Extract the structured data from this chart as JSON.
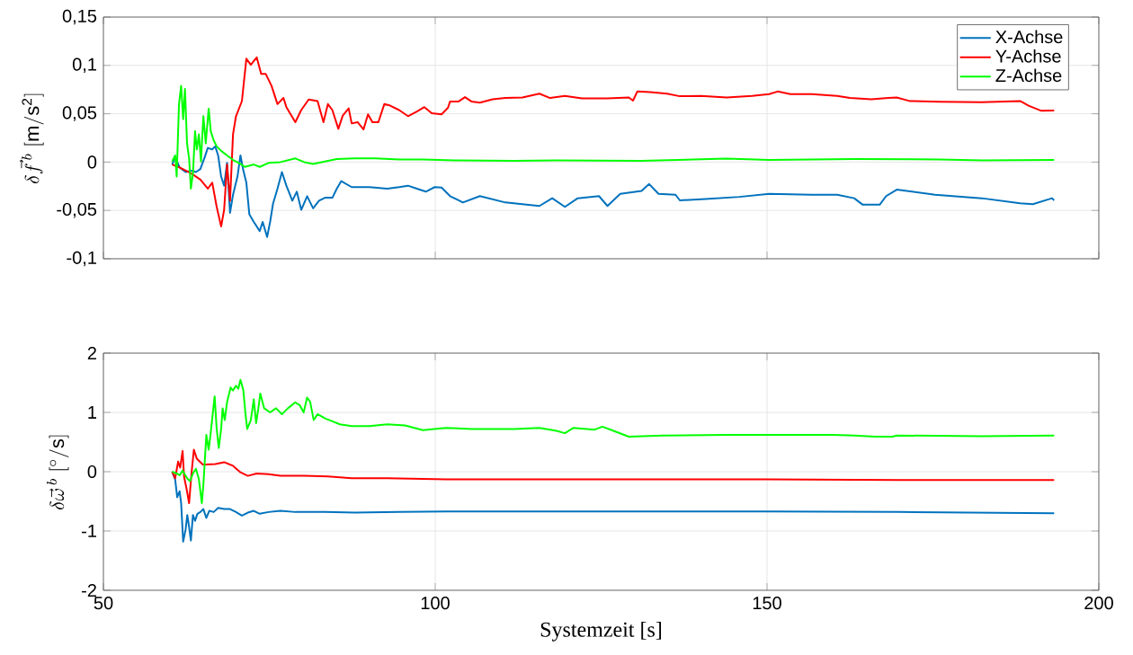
{
  "chart_data": [
    {
      "type": "line",
      "ylabel": "\\delta \\vec{f}^{\\,b}\\ [\\mathrm{m/s^2}]",
      "xlim": [
        50,
        200
      ],
      "xticks": [
        50,
        100,
        150,
        200
      ],
      "ylim": [
        -0.1,
        0.15
      ],
      "yticks": [
        {
          "value": -0.1,
          "label": "-0,1"
        },
        {
          "value": -0.05,
          "label": "-0,05"
        },
        {
          "value": 0,
          "label": "0"
        },
        {
          "value": 0.05,
          "label": "0,05"
        },
        {
          "value": 0.1,
          "label": "0,1"
        },
        {
          "value": 0.15,
          "label": "0,15"
        }
      ],
      "tick_labels": "y",
      "grid": true,
      "legend": "top right",
      "series": [
        {
          "name": "X-Achse",
          "color": "#0072bd",
          "x": [
            60.36,
            60.81,
            61.48,
            62.38,
            63.27,
            63.94,
            64.61,
            65.28,
            65.73,
            66.4,
            66.85,
            67.29,
            67.74,
            68.19,
            68.63,
            69.08,
            69.53,
            70.2,
            70.65,
            71.09,
            71.54,
            71.99,
            72.66,
            73.55,
            74.0,
            74.67,
            75.12,
            75.56,
            76.23,
            76.9,
            77.57,
            78.47,
            79.14,
            79.81,
            80.7,
            81.6,
            82.49,
            83.39,
            84.5,
            85.17,
            85.84,
            87.41,
            90.09,
            92.77,
            94.56,
            95.9,
            97.24,
            98.58,
            99.92,
            100.96,
            102.24,
            104.17,
            106.73,
            110.58,
            115.7,
            117.63,
            119.55,
            121.47,
            124.68,
            125.96,
            127.88,
            131.09,
            132.24,
            133.65,
            136.22,
            136.86,
            140.7,
            145.83,
            150.32,
            156.73,
            160.57,
            163.14,
            164.42,
            166.98,
            167.95,
            169.55,
            175.32,
            182.37,
            188.14,
            190.06,
            192.95,
            193.27
          ],
          "values": [
            -0.0025,
            0.0053,
            -0.0056,
            -0.0103,
            -0.0088,
            -0.0103,
            -0.0072,
            0.0053,
            0.0147,
            0.0131,
            0.0163,
            0.0069,
            -0.015,
            -0.0244,
            -0.0009,
            -0.0525,
            -0.0338,
            -0.015,
            0.0069,
            -0.0088,
            -0.0213,
            -0.0541,
            -0.0619,
            -0.0713,
            -0.0619,
            -0.0775,
            -0.0619,
            -0.0431,
            -0.0275,
            -0.0103,
            -0.0244,
            -0.04,
            -0.0306,
            -0.0494,
            -0.0353,
            -0.0478,
            -0.04,
            -0.0369,
            -0.0369,
            -0.0275,
            -0.0197,
            -0.0259,
            -0.0259,
            -0.0275,
            -0.0259,
            -0.0244,
            -0.0275,
            -0.0306,
            -0.0259,
            -0.0263,
            -0.0352,
            -0.0418,
            -0.0352,
            -0.0418,
            -0.0454,
            -0.0374,
            -0.0463,
            -0.0374,
            -0.0352,
            -0.0454,
            -0.0329,
            -0.0298,
            -0.0227,
            -0.0329,
            -0.0338,
            -0.0396,
            -0.0383,
            -0.036,
            -0.0329,
            -0.0338,
            -0.0338,
            -0.0374,
            -0.0441,
            -0.0441,
            -0.0352,
            -0.0285,
            -0.0338,
            -0.0374,
            -0.0427,
            -0.0436,
            -0.0374,
            -0.0396
          ]
        },
        {
          "name": "Y-Achse",
          "color": "#ff0000",
          "x": [
            60.36,
            61.48,
            63.27,
            64.61,
            65.73,
            66.4,
            67.07,
            67.74,
            68.19,
            68.63,
            69.08,
            69.53,
            69.98,
            70.87,
            71.54,
            72.21,
            73.1,
            73.77,
            74.45,
            75.34,
            76.23,
            77.13,
            77.57,
            78.92,
            79.81,
            80.93,
            82.27,
            83.16,
            83.83,
            84.5,
            85.4,
            86.07,
            86.96,
            87.41,
            88.3,
            89.2,
            89.87,
            90.54,
            91.43,
            92.33,
            93.22,
            94.56,
            95.9,
            97.24,
            98.36,
            99.48,
            100.96,
            101.92,
            102.24,
            103.53,
            104.49,
            105.45,
            106.73,
            108.65,
            110.58,
            113.14,
            115.7,
            117.31,
            119.55,
            122.11,
            125.96,
            129.17,
            129.81,
            130.45,
            132.37,
            134.93,
            136.86,
            140.06,
            143.91,
            147.75,
            150.32,
            151.6,
            153.52,
            156.73,
            160.57,
            162.5,
            165.7,
            168.27,
            169.55,
            171.47,
            175.96,
            182.37,
            188.14,
            189.42,
            191.35,
            193.27
          ],
          "values": [
            -0.0025,
            -0.0056,
            -0.0119,
            -0.0181,
            -0.0275,
            -0.0213,
            -0.0463,
            -0.0666,
            -0.0494,
            -0.0025,
            -0.04,
            0.0288,
            0.0475,
            0.0631,
            0.1069,
            0.1006,
            0.1084,
            0.0913,
            0.0913,
            0.0788,
            0.06,
            0.0663,
            0.0569,
            0.0413,
            0.0538,
            0.0647,
            0.0631,
            0.0413,
            0.06,
            0.0538,
            0.0344,
            0.0481,
            0.0556,
            0.04,
            0.0413,
            0.0338,
            0.0494,
            0.0413,
            0.0413,
            0.06,
            0.0584,
            0.0538,
            0.0475,
            0.0522,
            0.0569,
            0.0506,
            0.0494,
            0.0561,
            0.0627,
            0.0627,
            0.0672,
            0.0627,
            0.0614,
            0.065,
            0.0663,
            0.0668,
            0.0708,
            0.0663,
            0.0685,
            0.0659,
            0.0659,
            0.0668,
            0.0636,
            0.073,
            0.0725,
            0.0708,
            0.0681,
            0.0685,
            0.0668,
            0.0685,
            0.0703,
            0.073,
            0.0703,
            0.0703,
            0.0685,
            0.0663,
            0.065,
            0.0663,
            0.0668,
            0.0632,
            0.0623,
            0.0619,
            0.0632,
            0.0583,
            0.053,
            0.0534
          ]
        },
        {
          "name": "Z-Achse",
          "color": "#00ff00",
          "x": [
            60.36,
            60.81,
            61.04,
            61.39,
            61.71,
            62.02,
            62.29,
            62.6,
            62.91,
            63.18,
            63.49,
            63.81,
            64.07,
            64.39,
            64.7,
            65.06,
            65.42,
            65.86,
            66.18,
            66.62,
            67.07,
            67.74,
            68.63,
            69.53,
            70.42,
            71.32,
            72.66,
            73.55,
            74.89,
            76.68,
            78.92,
            80.26,
            81.6,
            83.39,
            85.17,
            87.86,
            90.98,
            94.56,
            98.14,
            102.88,
            111.86,
            118.27,
            131.09,
            141.34,
            143.91,
            150.32,
            163.14,
            175.96,
            182.37,
            193.27
          ],
          "values": [
            0.0006,
            0.0069,
            -0.015,
            0.06,
            0.0788,
            0.0444,
            0.0756,
            0.0194,
            0.0038,
            -0.0275,
            -0.0119,
            0.0319,
            0.0131,
            0.0288,
            0.0006,
            0.0475,
            0.0194,
            0.0553,
            0.0319,
            0.0225,
            0.0163,
            0.0116,
            0.0069,
            0.0022,
            -0.0009,
            -0.005,
            -0.0025,
            -0.005,
            -0.0009,
            0.0,
            0.0038,
            0.0,
            -0.0019,
            0.0006,
            0.0031,
            0.0038,
            0.0038,
            0.0028,
            0.0028,
            0.0018,
            0.0013,
            0.0018,
            0.0013,
            0.0031,
            0.0036,
            0.0022,
            0.0031,
            0.0027,
            0.0018,
            0.0022
          ]
        }
      ]
    },
    {
      "type": "line",
      "xlabel": "Systemzeit [s]",
      "ylabel": "\\delta \\vec{\\omega}^{\\,b}\\ [^{\\circ}/\\mathrm{s}]",
      "xlim": [
        50,
        200
      ],
      "xticks": [
        50,
        100,
        150,
        200
      ],
      "ylim": [
        -2,
        2
      ],
      "yticks": [
        -2,
        -1,
        0,
        1,
        2
      ],
      "grid": true,
      "series": [
        {
          "color": "#0072bd",
          "x": [
            60.36,
            60.81,
            61.12,
            61.48,
            61.71,
            62.02,
            62.38,
            62.64,
            62.91,
            63.18,
            63.49,
            63.81,
            64.16,
            64.61,
            65.06,
            65.51,
            65.95,
            66.62,
            67.29,
            68.19,
            69.08,
            69.98,
            70.87,
            71.76,
            72.66,
            73.55,
            74.89,
            76.68,
            78.92,
            83.39,
            87.86,
            94.56,
            101.7,
            110,
            130,
            150,
            170,
            193.27
          ],
          "values": [
            0.0,
            -0.13,
            -0.43,
            -0.33,
            -0.53,
            -1.18,
            -0.98,
            -0.73,
            -0.93,
            -1.16,
            -0.73,
            -0.83,
            -0.71,
            -0.68,
            -0.63,
            -0.78,
            -0.66,
            -0.68,
            -0.61,
            -0.63,
            -0.63,
            -0.68,
            -0.74,
            -0.69,
            -0.66,
            -0.71,
            -0.68,
            -0.66,
            -0.68,
            -0.68,
            -0.69,
            -0.68,
            -0.67,
            -0.67,
            -0.67,
            -0.67,
            -0.68,
            -0.7
          ]
        },
        {
          "color": "#ff0000",
          "x": [
            60.36,
            60.81,
            61.26,
            61.57,
            61.93,
            62.15,
            62.6,
            62.91,
            63.27,
            63.63,
            64.07,
            64.52,
            64.97,
            65.42,
            66.85,
            68.19,
            69.53,
            70.65,
            71.76,
            73.1,
            74.89,
            76.68,
            80.26,
            83.83,
            87.41,
            92.77,
            98.14,
            101.7,
            110,
            130,
            150,
            170,
            193.27
          ],
          "values": [
            0.0,
            -0.11,
            0.17,
            0.07,
            0.35,
            -0.08,
            -0.33,
            -0.53,
            -0.03,
            0.37,
            0.22,
            0.17,
            0.12,
            0.12,
            0.13,
            0.16,
            0.1,
            -0.01,
            -0.07,
            -0.03,
            -0.04,
            -0.07,
            -0.07,
            -0.08,
            -0.11,
            -0.11,
            -0.12,
            -0.13,
            -0.13,
            -0.13,
            -0.13,
            -0.14,
            -0.14
          ]
        },
        {
          "color": "#00ff00",
          "x": [
            60.36,
            61.04,
            61.48,
            61.93,
            62.6,
            63.05,
            63.49,
            63.94,
            64.39,
            64.83,
            65.06,
            65.51,
            65.86,
            66.18,
            66.76,
            67.07,
            67.38,
            67.74,
            67.96,
            68.28,
            68.63,
            69.17,
            69.53,
            69.98,
            70.33,
            70.65,
            71.09,
            71.41,
            71.67,
            72.21,
            72.66,
            73.01,
            73.33,
            73.64,
            74.22,
            75.12,
            76.01,
            76.9,
            77.8,
            78.92,
            79.59,
            80.17,
            80.7,
            81.15,
            81.69,
            82.27,
            83.39,
            84.5,
            85.62,
            87.41,
            90.09,
            92.77,
            95.45,
            98.14,
            101.6,
            105.45,
            111.86,
            115.7,
            118.27,
            119.55,
            120.83,
            124.04,
            125.19,
            126.6,
            129.17,
            134.29,
            143.91,
            159.93,
            163.14,
            166.34,
            168.91,
            169.55,
            182.37,
            193.27
          ],
          "values": [
            0.0,
            -0.03,
            -0.06,
            0.02,
            -0.11,
            -0.16,
            -0.03,
            0.05,
            -0.13,
            -0.53,
            -0.23,
            0.62,
            0.37,
            0.67,
            1.27,
            0.72,
            0.4,
            0.72,
            1.07,
            0.87,
            1.17,
            1.42,
            1.37,
            1.45,
            1.4,
            1.55,
            1.37,
            0.97,
            0.72,
            0.87,
            1.22,
            0.82,
            1.05,
            1.32,
            1.07,
            1.0,
            1.07,
            0.97,
            1.07,
            1.17,
            1.12,
            1.0,
            1.25,
            1.18,
            0.87,
            0.97,
            0.9,
            0.85,
            0.8,
            0.77,
            0.77,
            0.8,
            0.78,
            0.7,
            0.74,
            0.72,
            0.72,
            0.74,
            0.69,
            0.65,
            0.74,
            0.71,
            0.76,
            0.7,
            0.59,
            0.61,
            0.62,
            0.62,
            0.61,
            0.59,
            0.59,
            0.61,
            0.6,
            0.61
          ]
        }
      ]
    }
  ]
}
